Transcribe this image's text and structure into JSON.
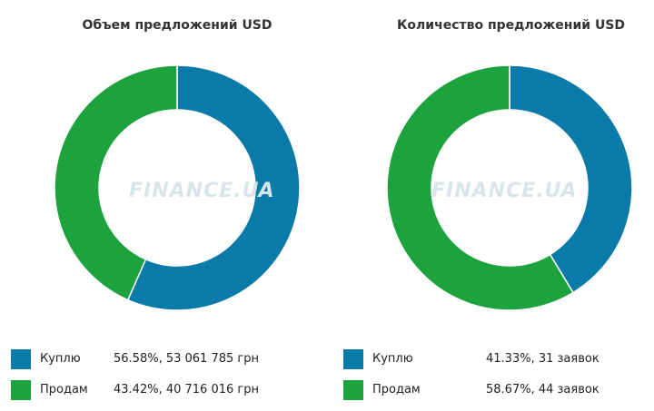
{
  "watermark": "FINANCE.UA",
  "chart_data": [
    {
      "type": "pie",
      "title": "Объем предложений USD",
      "categories": [
        "Куплю",
        "Продам"
      ],
      "values": [
        56.58,
        43.42
      ],
      "colors": [
        "#0a7aa8",
        "#1da33d"
      ],
      "legend": [
        {
          "label": "Куплю",
          "value_text": "56.58%, 53 061 785 грн"
        },
        {
          "label": "Продам",
          "value_text": "43.42%, 40 716 016 грн"
        }
      ]
    },
    {
      "type": "pie",
      "title": "Количество предложений USD",
      "categories": [
        "Куплю",
        "Продам"
      ],
      "values": [
        41.33,
        58.67
      ],
      "colors": [
        "#0a7aa8",
        "#1da33d"
      ],
      "legend": [
        {
          "label": "Куплю",
          "value_text": "41.33%, 31 заявок"
        },
        {
          "label": "Продам",
          "value_text": "58.67%, 44 заявок"
        }
      ]
    }
  ]
}
